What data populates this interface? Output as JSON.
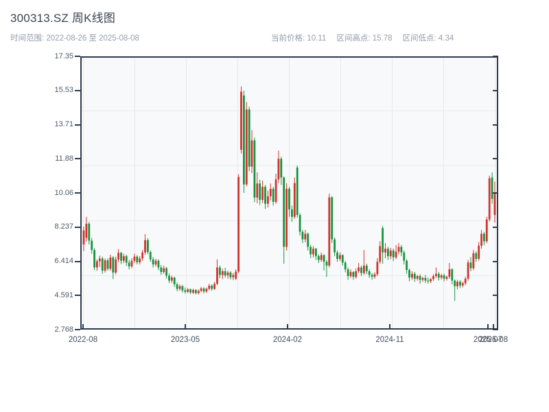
{
  "header": {
    "title": "300313.SZ 周K线图",
    "time_range_label": "时间范围: 2022-08-26 至 2025-08-08",
    "current_price_label": "当前价格: 10.11",
    "range_high_label": "区间高点: 15.78",
    "range_low_label": "区间低点: 4.34"
  },
  "chart_data": {
    "type": "candlestick",
    "title": "300313.SZ 周K线图",
    "subtitle": "时间范围: 2022-08-26 至 2025-08-08",
    "period": "weekly",
    "symbol": "300313.SZ",
    "current_price": 10.11,
    "range_high": 15.78,
    "range_low": 4.34,
    "x_start": "2022-08-26",
    "x_end": "2025-08-08",
    "x_tick_labels": [
      "2022-08",
      "2023-05",
      "2024-02",
      "2024-11",
      "2025-07",
      "2025-08"
    ],
    "y_tick_labels": [
      "17.35",
      "15.53",
      "13.71",
      "11.88",
      "10.06",
      "8.237",
      "6.414",
      "4.591",
      "2.768"
    ],
    "y_range": [
      2.768,
      17.35
    ],
    "grid": true,
    "colors": {
      "up": "#d0342c",
      "down": "#15943f",
      "spine": "#2e3a4e",
      "plot_bg": "#f7f9fa",
      "grid": "#e7eaee"
    },
    "ohlc_order": [
      "open",
      "high",
      "low",
      "close"
    ],
    "ohlc": [
      [
        7.35,
        8.3,
        7.0,
        8.1
      ],
      [
        7.7,
        8.82,
        7.5,
        8.45
      ],
      [
        8.45,
        8.55,
        7.35,
        7.55
      ],
      [
        7.55,
        7.7,
        6.85,
        7.05
      ],
      [
        7.05,
        7.15,
        5.98,
        6.12
      ],
      [
        6.12,
        6.55,
        5.95,
        6.45
      ],
      [
        6.45,
        6.75,
        6.15,
        6.6
      ],
      [
        6.6,
        6.7,
        5.78,
        5.95
      ],
      [
        5.95,
        6.6,
        5.85,
        6.5
      ],
      [
        6.5,
        6.6,
        5.95,
        6.05
      ],
      [
        6.05,
        6.8,
        5.95,
        6.65
      ],
      [
        6.65,
        6.72,
        5.5,
        5.85
      ],
      [
        5.85,
        6.7,
        5.75,
        6.55
      ],
      [
        6.55,
        7.1,
        6.4,
        6.9
      ],
      [
        6.9,
        6.95,
        6.3,
        6.48
      ],
      [
        6.48,
        6.85,
        6.35,
        6.72
      ],
      [
        6.72,
        6.8,
        6.2,
        6.38
      ],
      [
        6.38,
        6.52,
        6.02,
        6.18
      ],
      [
        6.18,
        6.62,
        6.08,
        6.48
      ],
      [
        6.48,
        6.85,
        6.35,
        6.7
      ],
      [
        6.7,
        6.78,
        6.28,
        6.4
      ],
      [
        6.4,
        6.72,
        6.28,
        6.6
      ],
      [
        6.6,
        7.05,
        6.48,
        6.92
      ],
      [
        6.92,
        7.9,
        6.8,
        7.58
      ],
      [
        7.58,
        7.68,
        6.82,
        6.95
      ],
      [
        6.95,
        7.02,
        6.42,
        6.55
      ],
      [
        6.55,
        6.68,
        6.12,
        6.28
      ],
      [
        6.28,
        6.58,
        6.18,
        6.48
      ],
      [
        6.48,
        6.55,
        5.98,
        6.12
      ],
      [
        6.12,
        6.25,
        5.72,
        5.88
      ],
      [
        5.88,
        6.22,
        5.78,
        6.08
      ],
      [
        6.08,
        6.15,
        5.52,
        5.68
      ],
      [
        5.68,
        5.8,
        5.28,
        5.42
      ],
      [
        5.42,
        5.68,
        5.3,
        5.58
      ],
      [
        5.58,
        5.62,
        5.08,
        5.22
      ],
      [
        5.22,
        5.32,
        4.85,
        4.98
      ],
      [
        4.98,
        5.22,
        4.88,
        5.12
      ],
      [
        5.12,
        5.18,
        4.78,
        4.9
      ],
      [
        4.9,
        5.05,
        4.72,
        4.82
      ],
      [
        4.82,
        5.02,
        4.75,
        4.95
      ],
      [
        4.95,
        5.0,
        4.7,
        4.78
      ],
      [
        4.78,
        4.98,
        4.7,
        4.92
      ],
      [
        4.92,
        4.96,
        4.68,
        4.75
      ],
      [
        4.75,
        4.95,
        4.68,
        4.88
      ],
      [
        4.88,
        5.08,
        4.8,
        5.0
      ],
      [
        5.0,
        5.06,
        4.74,
        4.84
      ],
      [
        4.84,
        5.05,
        4.76,
        4.98
      ],
      [
        4.98,
        5.25,
        4.9,
        5.15
      ],
      [
        5.15,
        5.22,
        4.88,
        4.98
      ],
      [
        4.98,
        5.35,
        4.92,
        5.25
      ],
      [
        5.25,
        6.55,
        5.18,
        6.12
      ],
      [
        6.12,
        6.22,
        5.55,
        5.72
      ],
      [
        5.72,
        6.05,
        5.5,
        5.92
      ],
      [
        5.92,
        6.1,
        5.58,
        5.7
      ],
      [
        5.7,
        5.95,
        5.52,
        5.85
      ],
      [
        5.85,
        5.92,
        5.48,
        5.6
      ],
      [
        5.6,
        5.82,
        5.45,
        5.72
      ],
      [
        5.52,
        6.02,
        5.45,
        5.9
      ],
      [
        5.9,
        11.1,
        5.82,
        10.95
      ],
      [
        12.4,
        15.78,
        12.2,
        15.5
      ],
      [
        15.3,
        15.55,
        10.1,
        10.55
      ],
      [
        10.55,
        14.95,
        10.45,
        14.55
      ],
      [
        14.55,
        14.7,
        11.25,
        11.5
      ],
      [
        11.5,
        13.45,
        11.15,
        12.9
      ],
      [
        12.9,
        13.05,
        9.6,
        9.85
      ],
      [
        9.85,
        11.2,
        9.55,
        10.6
      ],
      [
        10.6,
        10.8,
        9.45,
        9.72
      ],
      [
        9.72,
        10.75,
        9.55,
        10.42
      ],
      [
        10.42,
        10.52,
        9.25,
        9.52
      ],
      [
        9.52,
        10.22,
        9.32,
        9.92
      ],
      [
        9.92,
        10.6,
        9.7,
        10.32
      ],
      [
        10.32,
        10.42,
        9.42,
        9.62
      ],
      [
        9.62,
        11.12,
        9.52,
        10.82
      ],
      [
        10.82,
        12.35,
        10.62,
        11.92
      ],
      [
        11.92,
        12.02,
        10.52,
        10.92
      ],
      [
        10.92,
        10.98,
        6.32,
        7.22
      ],
      [
        7.22,
        10.62,
        7.02,
        10.32
      ],
      [
        10.32,
        10.42,
        8.82,
        9.22
      ],
      [
        9.22,
        9.42,
        8.56,
        8.82
      ],
      [
        8.82,
        10.92,
        8.72,
        10.62
      ],
      [
        11.45,
        11.56,
        8.78,
        8.92
      ],
      [
        8.92,
        9.02,
        7.82,
        8.02
      ],
      [
        8.02,
        8.12,
        7.42,
        7.62
      ],
      [
        7.62,
        8.12,
        7.46,
        7.92
      ],
      [
        7.92,
        7.98,
        7.02,
        7.22
      ],
      [
        7.22,
        7.32,
        6.62,
        6.82
      ],
      [
        6.82,
        7.26,
        6.66,
        7.12
      ],
      [
        7.12,
        7.16,
        6.52,
        6.72
      ],
      [
        6.72,
        6.82,
        6.36,
        6.52
      ],
      [
        6.52,
        6.92,
        6.42,
        6.78
      ],
      [
        6.78,
        6.82,
        5.96,
        6.42
      ],
      [
        6.42,
        6.52,
        5.62,
        6.22
      ],
      [
        6.22,
        10.06,
        6.12,
        9.86
      ],
      [
        9.86,
        9.92,
        7.42,
        7.62
      ],
      [
        7.62,
        7.72,
        6.72,
        6.92
      ],
      [
        6.92,
        7.02,
        6.42,
        6.58
      ],
      [
        6.58,
        6.92,
        6.46,
        6.78
      ],
      [
        6.78,
        6.82,
        6.22,
        6.38
      ],
      [
        6.38,
        6.46,
        5.86,
        6.02
      ],
      [
        6.02,
        6.12,
        5.46,
        5.66
      ],
      [
        5.66,
        6.02,
        5.56,
        5.88
      ],
      [
        5.88,
        5.92,
        5.46,
        5.62
      ],
      [
        5.62,
        6.06,
        5.52,
        5.92
      ],
      [
        5.92,
        6.36,
        5.82,
        6.12
      ],
      [
        6.12,
        6.22,
        5.66,
        5.82
      ],
      [
        5.82,
        7.05,
        5.72,
        6.22
      ],
      [
        6.22,
        6.32,
        5.76,
        5.92
      ],
      [
        5.92,
        6.02,
        5.56,
        5.72
      ],
      [
        5.72,
        5.82,
        5.46,
        5.62
      ],
      [
        5.62,
        5.86,
        5.52,
        5.76
      ],
      [
        5.76,
        6.62,
        5.66,
        6.42
      ],
      [
        6.42,
        7.52,
        6.32,
        7.26
      ],
      [
        8.22,
        8.33,
        6.32,
        6.92
      ],
      [
        6.92,
        7.42,
        6.62,
        7.12
      ],
      [
        7.12,
        7.22,
        6.52,
        6.72
      ],
      [
        6.72,
        7.16,
        6.56,
        7.02
      ],
      [
        7.02,
        7.12,
        6.46,
        6.66
      ],
      [
        6.66,
        7.32,
        6.56,
        6.96
      ],
      [
        6.96,
        7.42,
        6.82,
        7.22
      ],
      [
        7.22,
        7.32,
        6.72,
        6.92
      ],
      [
        6.92,
        7.02,
        6.28,
        6.48
      ],
      [
        6.48,
        6.56,
        5.78,
        5.98
      ],
      [
        5.98,
        6.06,
        5.38,
        5.58
      ],
      [
        5.58,
        5.92,
        5.46,
        5.78
      ],
      [
        5.78,
        5.88,
        5.36,
        5.52
      ],
      [
        5.52,
        5.72,
        5.42,
        5.66
      ],
      [
        5.66,
        5.76,
        5.26,
        5.46
      ],
      [
        5.46,
        5.62,
        5.36,
        5.56
      ],
      [
        5.56,
        5.72,
        5.3,
        5.42
      ],
      [
        5.42,
        5.58,
        5.26,
        5.38
      ],
      [
        5.38,
        5.56,
        5.28,
        5.5
      ],
      [
        5.5,
        5.76,
        5.4,
        5.66
      ],
      [
        5.66,
        6.12,
        5.56,
        5.78
      ],
      [
        5.78,
        5.88,
        5.42,
        5.58
      ],
      [
        5.58,
        5.78,
        5.48,
        5.7
      ],
      [
        5.7,
        5.78,
        5.38,
        5.52
      ],
      [
        5.52,
        5.68,
        5.42,
        5.62
      ],
      [
        5.62,
        6.36,
        5.52,
        6.02
      ],
      [
        6.02,
        6.08,
        5.22,
        5.42
      ],
      [
        5.42,
        5.48,
        4.34,
        5.12
      ],
      [
        5.12,
        5.46,
        4.96,
        5.36
      ],
      [
        5.36,
        5.44,
        5.02,
        5.16
      ],
      [
        5.16,
        5.36,
        5.06,
        5.28
      ],
      [
        5.28,
        5.62,
        5.18,
        5.52
      ],
      [
        5.52,
        6.52,
        5.42,
        6.38
      ],
      [
        6.38,
        6.68,
        5.92,
        6.08
      ],
      [
        6.08,
        7.06,
        5.98,
        6.88
      ],
      [
        6.88,
        6.98,
        6.42,
        6.58
      ],
      [
        6.58,
        7.48,
        6.48,
        7.28
      ],
      [
        7.28,
        8.12,
        7.12,
        7.92
      ],
      [
        7.92,
        8.02,
        7.32,
        7.52
      ],
      [
        7.52,
        8.82,
        7.42,
        8.68
      ],
      [
        8.68,
        11.02,
        8.58,
        10.88
      ],
      [
        10.92,
        11.19,
        9.52,
        9.78
      ],
      [
        8.92,
        10.7,
        8.52,
        10.11
      ]
    ]
  }
}
